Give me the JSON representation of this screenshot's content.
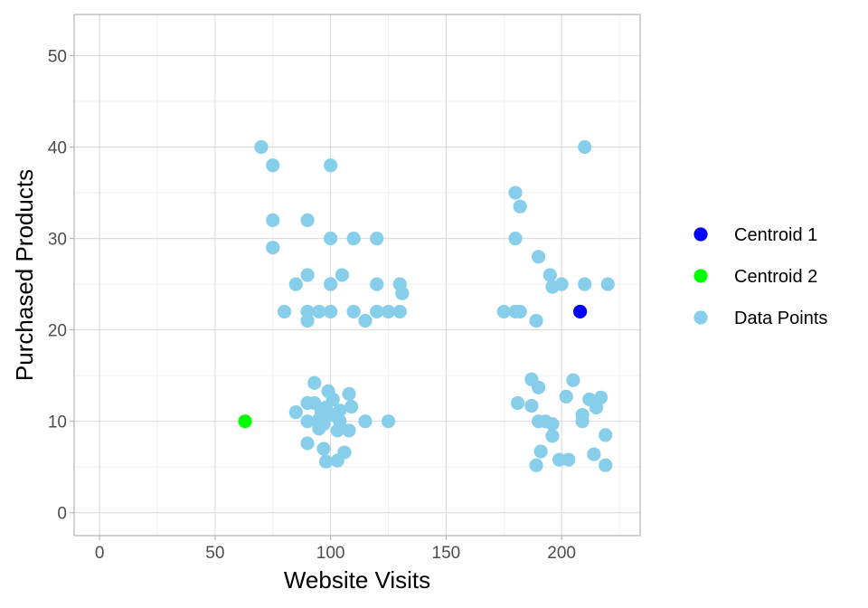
{
  "chart_data": {
    "type": "scatter",
    "title": "",
    "xlabel": "Website Visits",
    "ylabel": "Purchased Products",
    "xlim": [
      -11,
      234
    ],
    "ylim": [
      -2.5,
      54.5
    ],
    "x_ticks": [
      0,
      50,
      100,
      150,
      200
    ],
    "y_ticks": [
      0,
      10,
      20,
      30,
      40,
      50
    ],
    "grid": true,
    "legend_position": "right",
    "series": [
      {
        "name": "Centroid 1",
        "color": "#0000ff",
        "points": [
          [
            208,
            22
          ]
        ]
      },
      {
        "name": "Centroid 2",
        "color": "#00ff00",
        "points": [
          [
            63,
            10
          ]
        ]
      },
      {
        "name": "Data Points",
        "color": "#87ceeb",
        "points": [
          [
            70,
            40
          ],
          [
            75,
            38
          ],
          [
            100,
            38
          ],
          [
            75,
            32
          ],
          [
            90,
            32
          ],
          [
            75,
            29
          ],
          [
            100,
            30
          ],
          [
            110,
            30
          ],
          [
            120,
            30
          ],
          [
            90,
            26
          ],
          [
            85,
            25
          ],
          [
            105,
            26
          ],
          [
            100,
            25
          ],
          [
            120,
            25
          ],
          [
            130,
            25
          ],
          [
            131,
            24
          ],
          [
            80,
            22
          ],
          [
            90,
            22
          ],
          [
            95,
            22
          ],
          [
            100,
            22
          ],
          [
            110,
            22
          ],
          [
            120,
            22
          ],
          [
            125,
            22
          ],
          [
            130,
            22
          ],
          [
            90,
            21
          ],
          [
            115,
            21
          ],
          [
            93,
            14.2
          ],
          [
            99,
            13.3
          ],
          [
            108,
            13
          ],
          [
            101,
            12.4
          ],
          [
            90,
            12
          ],
          [
            93,
            12
          ],
          [
            98,
            11.5
          ],
          [
            104,
            11.2
          ],
          [
            109,
            11.6
          ],
          [
            85,
            11
          ],
          [
            96,
            11
          ],
          [
            100,
            10.7
          ],
          [
            95,
            10.2
          ],
          [
            90,
            10
          ],
          [
            104,
            10
          ],
          [
            115,
            10
          ],
          [
            125,
            10
          ],
          [
            97,
            9.7
          ],
          [
            95,
            9.2
          ],
          [
            103,
            9
          ],
          [
            108,
            9
          ],
          [
            90,
            7.6
          ],
          [
            97,
            7
          ],
          [
            106,
            6.6
          ],
          [
            98,
            5.6
          ],
          [
            103,
            5.7
          ],
          [
            210,
            40
          ],
          [
            180,
            35
          ],
          [
            182,
            33.5
          ],
          [
            180,
            30
          ],
          [
            190,
            28
          ],
          [
            195,
            26
          ],
          [
            200,
            25
          ],
          [
            210,
            25
          ],
          [
            220,
            25
          ],
          [
            196,
            24.7
          ],
          [
            175,
            22
          ],
          [
            180,
            22
          ],
          [
            182,
            22
          ],
          [
            189,
            21
          ],
          [
            187,
            14.6
          ],
          [
            205,
            14.5
          ],
          [
            190,
            13.7
          ],
          [
            202,
            12.7
          ],
          [
            212,
            12.4
          ],
          [
            217,
            12.6
          ],
          [
            181,
            12
          ],
          [
            187,
            11.7
          ],
          [
            215,
            11.5
          ],
          [
            209,
            10.7
          ],
          [
            190,
            10
          ],
          [
            193,
            10
          ],
          [
            209,
            10
          ],
          [
            196,
            9.7
          ],
          [
            196,
            8.4
          ],
          [
            219,
            8.5
          ],
          [
            191,
            6.7
          ],
          [
            214,
            6.4
          ],
          [
            199,
            5.8
          ],
          [
            203,
            5.8
          ],
          [
            189,
            5.2
          ],
          [
            219,
            5.2
          ]
        ]
      }
    ]
  }
}
